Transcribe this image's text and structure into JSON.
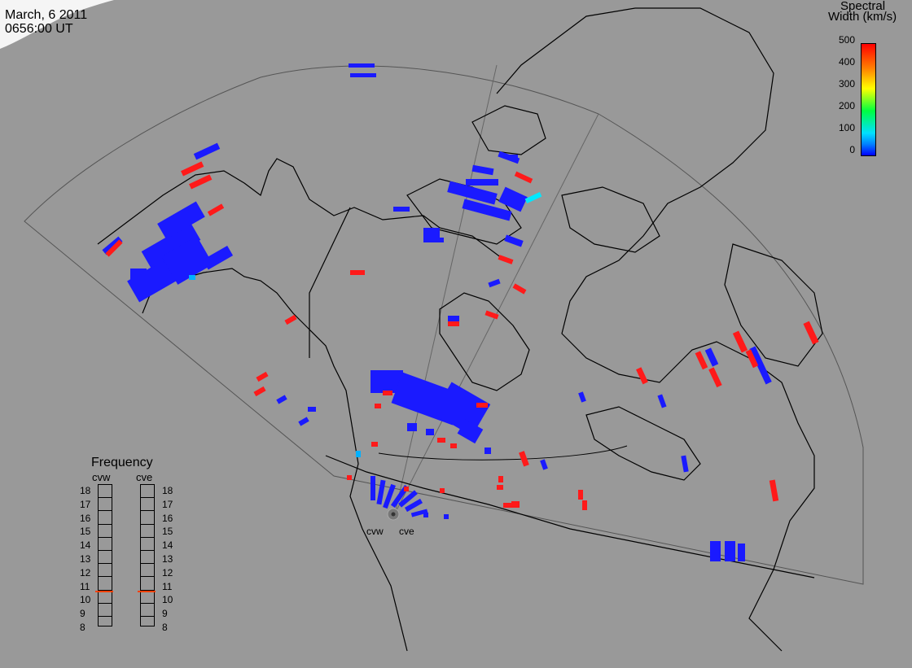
{
  "header": {
    "date": "March, 6 2011",
    "time": "0656:00 UT"
  },
  "colorbar": {
    "title_line1": "Spectral",
    "title_line2": "Width (km/s)",
    "ticks": [
      "500",
      "400",
      "300",
      "200",
      "100",
      "0"
    ],
    "colors": {
      "low": "#0000ff",
      "mid": "#00ff40",
      "high": "#ff0000"
    }
  },
  "frequency": {
    "title": "Frequency",
    "radars": [
      "cvw",
      "cve"
    ],
    "scale": [
      "18",
      "17",
      "16",
      "15",
      "14",
      "13",
      "12",
      "11",
      "10",
      "9",
      "8"
    ],
    "cvw_mhz": 10.7,
    "cve_mhz": 10.7
  },
  "radars": {
    "west": "cvw",
    "east": "cve"
  },
  "colors": {
    "background": "#999999",
    "land_outline": "#000000",
    "scatter_low": "#1a1aff",
    "scatter_high": "#ff1a1a",
    "scatter_mid": "#00e0ff"
  }
}
